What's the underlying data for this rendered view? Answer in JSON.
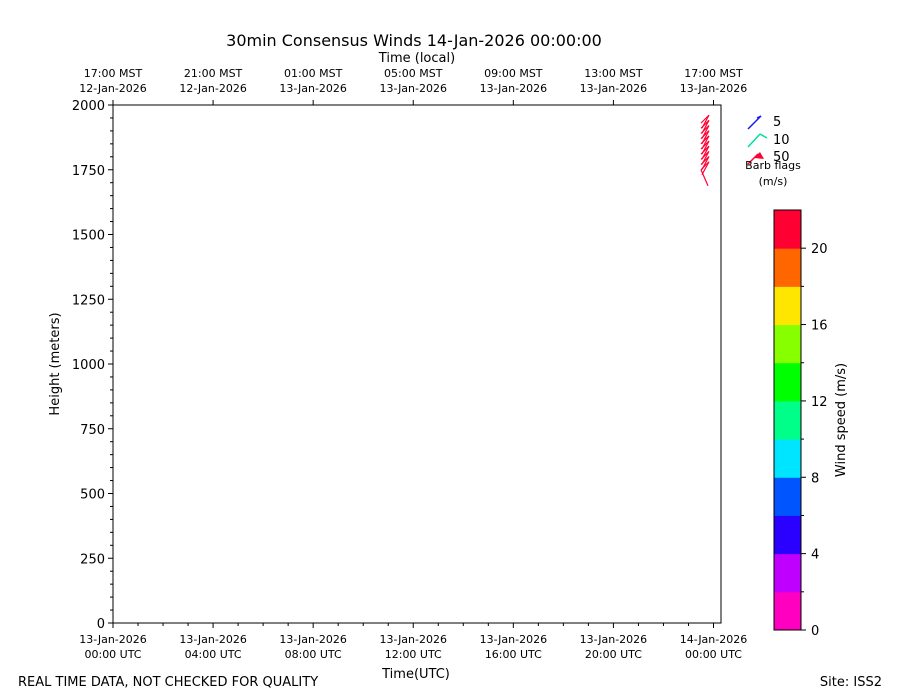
{
  "chart_data": {
    "type": "barb",
    "title": "30min Consensus Winds 14-Jan-2026 00:00:00",
    "top_axis_title": "Time (local)",
    "xlabel": "Time(UTC)",
    "ylabel": "Height (meters)",
    "ylim": [
      0,
      2000
    ],
    "y_ticks": [
      "0",
      "250",
      "500",
      "750",
      "1000",
      "1250",
      "1500",
      "1750",
      "2000"
    ],
    "x_hours_range": [
      0,
      24.3
    ],
    "x_ticks_utc": [
      {
        "date": "13-Jan-2026",
        "time": "00:00 UTC",
        "h": 0
      },
      {
        "date": "13-Jan-2026",
        "time": "04:00 UTC",
        "h": 4
      },
      {
        "date": "13-Jan-2026",
        "time": "08:00 UTC",
        "h": 8
      },
      {
        "date": "13-Jan-2026",
        "time": "12:00 UTC",
        "h": 12
      },
      {
        "date": "13-Jan-2026",
        "time": "16:00 UTC",
        "h": 16
      },
      {
        "date": "13-Jan-2026",
        "time": "20:00 UTC",
        "h": 20
      },
      {
        "date": "14-Jan-2026",
        "time": "00:00 UTC",
        "h": 24
      }
    ],
    "x_ticks_local": [
      {
        "time": "17:00 MST",
        "date": "12-Jan-2026",
        "h": 0
      },
      {
        "time": "21:00 MST",
        "date": "12-Jan-2026",
        "h": 4
      },
      {
        "time": "01:00 MST",
        "date": "13-Jan-2026",
        "h": 8
      },
      {
        "time": "05:00 MST",
        "date": "13-Jan-2026",
        "h": 12
      },
      {
        "time": "09:00 MST",
        "date": "13-Jan-2026",
        "h": 16
      },
      {
        "time": "13:00 MST",
        "date": "13-Jan-2026",
        "h": 20
      },
      {
        "time": "17:00 MST",
        "date": "13-Jan-2026",
        "h": 24
      }
    ],
    "barbs": {
      "time_h": 23.5,
      "heights": [
        1750,
        1770,
        1790,
        1810,
        1830,
        1850,
        1870,
        1890,
        1910,
        1930
      ],
      "color": "#ff0033"
    },
    "legend": {
      "title_line1": "Barb flags",
      "title_line2": "(m/s)",
      "items": [
        {
          "label": "5",
          "color": "#1a1aff"
        },
        {
          "label": "10",
          "color": "#00e0a0"
        },
        {
          "label": "50",
          "color": "#ff0033"
        }
      ]
    },
    "colorbar": {
      "label": "Wind speed (m/s)",
      "range": [
        0,
        22
      ],
      "colors": [
        "#ff00c0",
        "#bf00ff",
        "#2a00ff",
        "#0055ff",
        "#00e5ff",
        "#00ff88",
        "#00ff00",
        "#88ff00",
        "#ffe600",
        "#ff6600",
        "#ff0033"
      ],
      "ticks": [
        "0",
        "4",
        "8",
        "12",
        "16",
        "20"
      ]
    }
  },
  "footer": {
    "left": "REAL TIME DATA, NOT CHECKED FOR QUALITY",
    "right": "Site: ISS2"
  }
}
